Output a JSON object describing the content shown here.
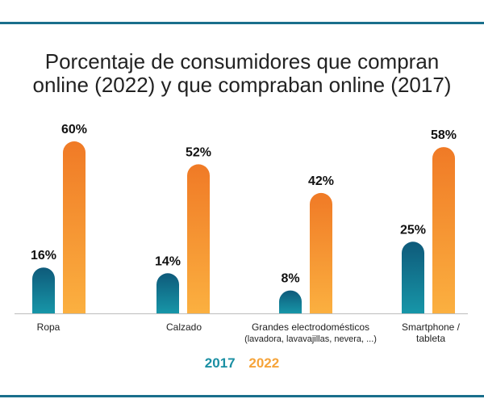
{
  "colors": {
    "rule": "#1a6f8c",
    "s2017_top": "#0e5a7a",
    "s2017_bottom": "#1796a8",
    "s2022_top": "#f07a26",
    "s2022_bottom": "#fbb040",
    "legend2017": "#1a8fa3",
    "legend2022": "#f6a43a",
    "label": "#111111",
    "axis": "#bdbdbd"
  },
  "chart_data": {
    "type": "bar",
    "title_lines": [
      "Porcentaje de consumidores que compran",
      "online (2022) y que compraban online (2017)"
    ],
    "categories": [
      [
        "Ropa"
      ],
      [
        "Calzado"
      ],
      [
        "Grandes electrodomésticos",
        "(lavadora, lavavajillas, nevera, ...)"
      ],
      [
        "Smartphone /",
        "tableta"
      ]
    ],
    "series": [
      {
        "name": "2017",
        "values": [
          16,
          14,
          8,
          25
        ],
        "labels": [
          "16%",
          "14%",
          "8%",
          "25%"
        ]
      },
      {
        "name": "2022",
        "values": [
          60,
          52,
          42,
          58
        ],
        "labels": [
          "60%",
          "52%",
          "42%",
          "58%"
        ]
      }
    ],
    "ylim": [
      0,
      60
    ],
    "grid": false,
    "legend_position": "bottom-center"
  }
}
